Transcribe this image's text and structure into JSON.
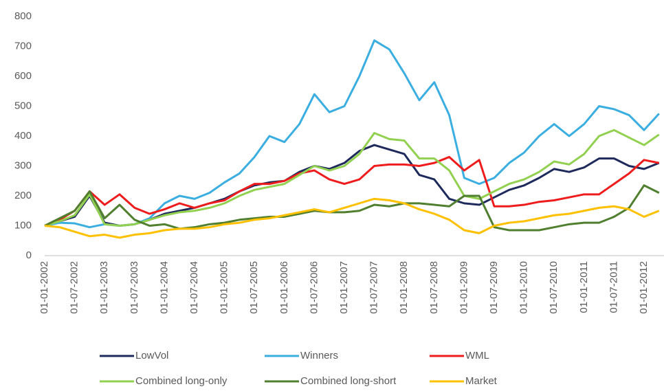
{
  "chart_data": {
    "type": "line",
    "categories": [
      "01-01-2002",
      null,
      "01-07-2002",
      null,
      "01-01-2003",
      null,
      "01-07-2003",
      null,
      "01-01-2004",
      null,
      "01-07-2004",
      null,
      "01-01-2005",
      null,
      "01-07-2005",
      null,
      "01-01-2006",
      null,
      "01-07-2006",
      null,
      "01-01-2007",
      null,
      "01-07-2007",
      null,
      "01-01-2008",
      null,
      "01-07-2008",
      null,
      "01-01-2009",
      null,
      "01-07-2009",
      null,
      "01-01-2010",
      null,
      "01-07-2010",
      null,
      "01-01-2011",
      null,
      "01-07-2011",
      null,
      "01-01-2012",
      null
    ],
    "series": [
      {
        "name": "LowVol",
        "color": "#1f2a5c",
        "values": [
          100,
          115,
          130,
          200,
          110,
          100,
          105,
          120,
          140,
          150,
          160,
          175,
          190,
          215,
          235,
          245,
          250,
          280,
          300,
          290,
          310,
          350,
          370,
          355,
          340,
          270,
          255,
          190,
          175,
          170,
          195,
          220,
          235,
          260,
          290,
          280,
          295,
          325,
          325,
          300,
          290,
          310
        ]
      },
      {
        "name": "Winners",
        "color": "#3aaee0",
        "values": [
          100,
          110,
          108,
          95,
          105,
          100,
          105,
          125,
          175,
          200,
          190,
          210,
          245,
          275,
          330,
          400,
          380,
          440,
          540,
          480,
          500,
          600,
          720,
          690,
          610,
          520,
          580,
          470,
          260,
          240,
          260,
          310,
          345,
          400,
          440,
          400,
          440,
          500,
          490,
          470,
          420,
          475
        ]
      },
      {
        "name": "WML",
        "color": "#ee1c1c",
        "values": [
          100,
          120,
          150,
          215,
          170,
          205,
          160,
          140,
          155,
          175,
          160,
          175,
          185,
          215,
          240,
          240,
          250,
          275,
          285,
          255,
          240,
          255,
          300,
          305,
          305,
          300,
          310,
          330,
          285,
          320,
          165,
          165,
          170,
          180,
          185,
          195,
          205,
          205,
          240,
          275,
          320,
          310
        ]
      },
      {
        "name": "Combined long-only",
        "color": "#92d050",
        "values": [
          100,
          115,
          135,
          205,
          105,
          100,
          105,
          120,
          135,
          145,
          150,
          160,
          175,
          200,
          220,
          230,
          240,
          270,
          300,
          285,
          300,
          340,
          410,
          390,
          385,
          325,
          325,
          285,
          200,
          190,
          215,
          240,
          255,
          280,
          315,
          305,
          340,
          400,
          420,
          395,
          370,
          405
        ]
      },
      {
        "name": "Combined long-short",
        "color": "#4f7f2f",
        "values": [
          100,
          125,
          150,
          215,
          125,
          170,
          120,
          100,
          105,
          90,
          95,
          105,
          110,
          120,
          125,
          130,
          130,
          140,
          150,
          145,
          145,
          150,
          170,
          165,
          175,
          175,
          170,
          165,
          200,
          200,
          95,
          85,
          85,
          85,
          95,
          105,
          110,
          110,
          130,
          160,
          235,
          210
        ]
      },
      {
        "name": "Market",
        "color": "#ffc000",
        "values": [
          100,
          95,
          80,
          65,
          70,
          60,
          70,
          75,
          85,
          90,
          90,
          95,
          105,
          110,
          120,
          125,
          135,
          145,
          155,
          145,
          160,
          175,
          190,
          185,
          175,
          155,
          140,
          120,
          85,
          75,
          100,
          110,
          115,
          125,
          135,
          140,
          150,
          160,
          165,
          155,
          130,
          150
        ]
      }
    ],
    "ylim": [
      0,
      800
    ],
    "yticks": [
      0,
      100,
      200,
      300,
      400,
      500,
      600,
      700,
      800
    ],
    "grid": false
  }
}
